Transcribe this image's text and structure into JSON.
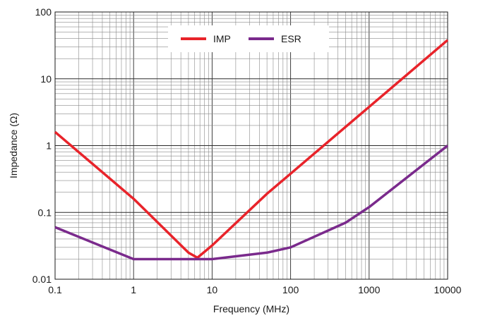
{
  "chart_data": {
    "type": "line",
    "title": "",
    "xlabel": "Frequency (MHz)",
    "ylabel": "Impedance (Ω)",
    "xscale": "log",
    "yscale": "log",
    "xlim": [
      0.1,
      10000
    ],
    "ylim": [
      0.01,
      100
    ],
    "grid": true,
    "legend_position": "top-center",
    "x_tick_labels": [
      "0.1",
      "1",
      "10",
      "100",
      "1000",
      "10000"
    ],
    "y_tick_labels": [
      "0.01",
      "0.1",
      "1",
      "10",
      "100"
    ],
    "series": [
      {
        "name": "IMP",
        "color": "#e8232a",
        "x": [
          0.1,
          1,
          5,
          6.5,
          10,
          50,
          100,
          1000,
          10000
        ],
        "y": [
          1.6,
          0.16,
          0.025,
          0.021,
          0.032,
          0.19,
          0.38,
          3.8,
          38
        ]
      },
      {
        "name": "ESR",
        "color": "#7a2a8c",
        "x": [
          0.1,
          1,
          5,
          10,
          50,
          100,
          500,
          1000,
          10000
        ],
        "y": [
          0.06,
          0.02,
          0.02,
          0.02,
          0.025,
          0.03,
          0.07,
          0.12,
          1.0
        ]
      }
    ]
  }
}
